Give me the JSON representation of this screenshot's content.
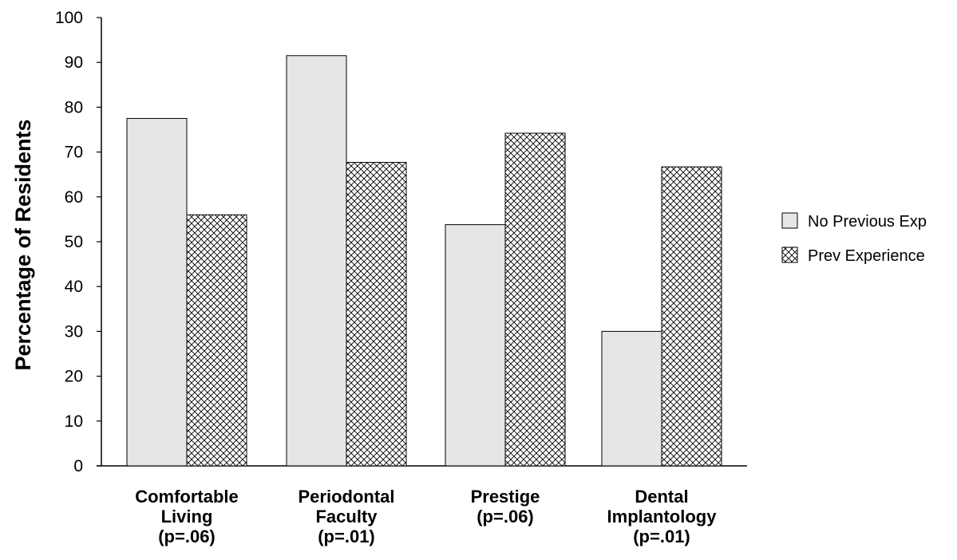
{
  "chart_data": {
    "type": "bar",
    "title": "",
    "xlabel": "",
    "ylabel": "Percentage of Residents",
    "ylim": [
      0,
      100
    ],
    "yticks": [
      0,
      10,
      20,
      30,
      40,
      50,
      60,
      70,
      80,
      90,
      100
    ],
    "grid": false,
    "legend_position": "right",
    "categories": [
      [
        "Comfortable",
        "Living",
        "(p=.06)"
      ],
      [
        "Periodontal",
        "Faculty",
        "(p=.01)"
      ],
      [
        "Prestige",
        "(p=.06)"
      ],
      [
        "Dental",
        "Implantology",
        "(p=.01)"
      ]
    ],
    "series": [
      {
        "name": "No Previous Exp",
        "values": [
          77.5,
          91.5,
          53.8,
          30.0
        ],
        "fill": "#e6e6e6",
        "pattern": "solid"
      },
      {
        "name": "Prev Experience",
        "values": [
          56.0,
          67.7,
          74.2,
          66.7
        ],
        "fill": "#ffffff",
        "pattern": "crosshatch"
      }
    ]
  }
}
